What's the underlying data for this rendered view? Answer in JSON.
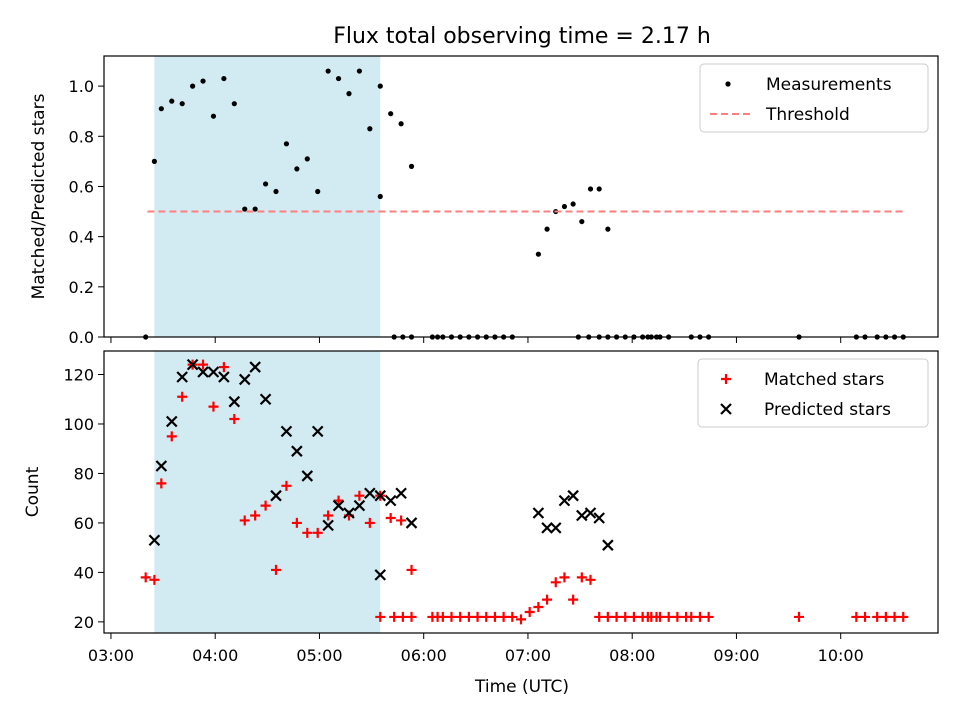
{
  "chart_data": {
    "title": "Flux total observing time = 2.17 h",
    "xlabel": "Time (UTC)",
    "x_ticks": [
      "03:00",
      "04:00",
      "05:00",
      "06:00",
      "07:00",
      "08:00",
      "09:00",
      "10:00"
    ],
    "xlim": [
      "02:56",
      "10:56"
    ],
    "highlight_span": {
      "x_start": "03:25",
      "x_end": "05:35",
      "color": "#add8e6"
    },
    "panels": [
      {
        "type": "scatter",
        "ylabel": "Matched/Predicted stars",
        "ylim": [
          0,
          1.12
        ],
        "y_ticks": [
          0.0,
          0.2,
          0.4,
          0.6,
          0.8,
          1.0
        ],
        "legend_position": "top-right",
        "series": [
          {
            "name": "Measurements",
            "marker": "dot",
            "color": "#000000",
            "points": [
              [
                "03:20",
                0
              ],
              [
                "03:25",
                0.7
              ],
              [
                "03:29",
                0.91
              ],
              [
                "03:35",
                0.94
              ],
              [
                "03:41",
                0.93
              ],
              [
                "03:47",
                1.0
              ],
              [
                "03:53",
                1.02
              ],
              [
                "03:59",
                0.88
              ],
              [
                "04:05",
                1.03
              ],
              [
                "04:11",
                0.93
              ],
              [
                "04:17",
                0.51
              ],
              [
                "04:23",
                0.51
              ],
              [
                "04:29",
                0.61
              ],
              [
                "04:35",
                0.58
              ],
              [
                "04:41",
                0.77
              ],
              [
                "04:47",
                0.67
              ],
              [
                "04:53",
                0.71
              ],
              [
                "04:59",
                0.58
              ],
              [
                "05:05",
                1.06
              ],
              [
                "05:11",
                1.03
              ],
              [
                "05:17",
                0.97
              ],
              [
                "05:23",
                1.06
              ],
              [
                "05:29",
                0.83
              ],
              [
                "05:35",
                1.0
              ],
              [
                "05:41",
                0.89
              ],
              [
                "05:47",
                0.85
              ],
              [
                "05:53",
                0.68
              ],
              [
                "05:35",
                0.56
              ],
              [
                "05:43",
                0
              ],
              [
                "05:48",
                0
              ],
              [
                "05:53",
                0
              ],
              [
                "06:05",
                0
              ],
              [
                "06:08",
                0
              ],
              [
                "06:11",
                0
              ],
              [
                "06:16",
                0
              ],
              [
                "06:21",
                0
              ],
              [
                "06:26",
                0
              ],
              [
                "06:31",
                0
              ],
              [
                "06:36",
                0
              ],
              [
                "06:41",
                0
              ],
              [
                "06:46",
                0
              ],
              [
                "06:51",
                0
              ],
              [
                "07:06",
                0.33
              ],
              [
                "07:11",
                0.43
              ],
              [
                "07:16",
                0.5
              ],
              [
                "07:21",
                0.52
              ],
              [
                "07:26",
                0.53
              ],
              [
                "07:31",
                0.46
              ],
              [
                "07:36",
                0.59
              ],
              [
                "07:41",
                0.59
              ],
              [
                "07:46",
                0.43
              ],
              [
                "07:29",
                0
              ],
              [
                "07:35",
                0
              ],
              [
                "07:41",
                0
              ],
              [
                "07:46",
                0
              ],
              [
                "07:51",
                0
              ],
              [
                "07:56",
                0
              ],
              [
                "08:01",
                0
              ],
              [
                "08:06",
                0
              ],
              [
                "08:11",
                0
              ],
              [
                "08:16",
                0
              ],
              [
                "08:21",
                0
              ],
              [
                "08:09",
                0
              ],
              [
                "08:14",
                0
              ],
              [
                "08:34",
                0
              ],
              [
                "08:39",
                0
              ],
              [
                "08:44",
                0
              ],
              [
                "09:36",
                0
              ],
              [
                "10:09",
                0
              ],
              [
                "10:14",
                0
              ],
              [
                "10:21",
                0
              ],
              [
                "10:26",
                0
              ],
              [
                "10:31",
                0
              ],
              [
                "10:36",
                0
              ]
            ]
          },
          {
            "name": "Threshold",
            "marker": "dashed-line",
            "color": "#ff7f7f",
            "points": [
              [
                "03:21",
                0.5
              ],
              [
                "10:36",
                0.5
              ]
            ]
          }
        ]
      },
      {
        "type": "scatter",
        "ylabel": "Count",
        "ylim": [
          15.5,
          129.5
        ],
        "y_ticks": [
          20,
          40,
          60,
          80,
          100,
          120
        ],
        "legend_position": "top-right",
        "series": [
          {
            "name": "Matched stars",
            "marker": "plus",
            "color": "#ff0000",
            "points": [
              [
                "03:20",
                38
              ],
              [
                "03:25",
                37
              ],
              [
                "03:29",
                76
              ],
              [
                "03:35",
                95
              ],
              [
                "03:41",
                111
              ],
              [
                "03:47",
                124
              ],
              [
                "03:53",
                124
              ],
              [
                "03:59",
                107
              ],
              [
                "04:05",
                123
              ],
              [
                "04:11",
                102
              ],
              [
                "04:17",
                61
              ],
              [
                "04:23",
                63
              ],
              [
                "04:29",
                67
              ],
              [
                "04:35",
                41
              ],
              [
                "04:41",
                75
              ],
              [
                "04:47",
                60
              ],
              [
                "04:53",
                56
              ],
              [
                "04:59",
                56
              ],
              [
                "05:05",
                63
              ],
              [
                "05:11",
                69
              ],
              [
                "05:17",
                63
              ],
              [
                "05:23",
                71
              ],
              [
                "05:29",
                60
              ],
              [
                "05:35",
                71
              ],
              [
                "05:41",
                62
              ],
              [
                "05:47",
                61
              ],
              [
                "05:53",
                41
              ],
              [
                "05:35",
                22
              ],
              [
                "05:43",
                22
              ],
              [
                "05:48",
                22
              ],
              [
                "05:53",
                22
              ],
              [
                "06:05",
                22
              ],
              [
                "06:08",
                22
              ],
              [
                "06:11",
                22
              ],
              [
                "06:16",
                22
              ],
              [
                "06:21",
                22
              ],
              [
                "06:26",
                22
              ],
              [
                "06:31",
                22
              ],
              [
                "06:36",
                22
              ],
              [
                "06:41",
                22
              ],
              [
                "06:46",
                22
              ],
              [
                "06:51",
                22
              ],
              [
                "06:56",
                21
              ],
              [
                "07:01",
                24
              ],
              [
                "07:06",
                26
              ],
              [
                "07:11",
                29
              ],
              [
                "07:16",
                36
              ],
              [
                "07:21",
                38
              ],
              [
                "07:26",
                29
              ],
              [
                "07:31",
                38
              ],
              [
                "07:36",
                37
              ],
              [
                "07:41",
                22
              ],
              [
                "07:46",
                22
              ],
              [
                "07:51",
                22
              ],
              [
                "07:56",
                22
              ],
              [
                "08:01",
                22
              ],
              [
                "08:06",
                22
              ],
              [
                "08:11",
                22
              ],
              [
                "08:16",
                22
              ],
              [
                "08:21",
                22
              ],
              [
                "08:26",
                22
              ],
              [
                "08:31",
                22
              ],
              [
                "08:09",
                22
              ],
              [
                "08:14",
                22
              ],
              [
                "08:34",
                22
              ],
              [
                "08:39",
                22
              ],
              [
                "08:44",
                22
              ],
              [
                "09:36",
                22
              ],
              [
                "10:09",
                22
              ],
              [
                "10:14",
                22
              ],
              [
                "10:21",
                22
              ],
              [
                "10:26",
                22
              ],
              [
                "10:31",
                22
              ],
              [
                "10:36",
                22
              ]
            ]
          },
          {
            "name": "Predicted stars",
            "marker": "x",
            "color": "#000000",
            "points": [
              [
                "03:25",
                53
              ],
              [
                "03:29",
                83
              ],
              [
                "03:35",
                101
              ],
              [
                "03:41",
                119
              ],
              [
                "03:47",
                124
              ],
              [
                "03:53",
                121
              ],
              [
                "03:59",
                121
              ],
              [
                "04:05",
                119
              ],
              [
                "04:11",
                109
              ],
              [
                "04:17",
                118
              ],
              [
                "04:23",
                123
              ],
              [
                "04:29",
                110
              ],
              [
                "04:35",
                71
              ],
              [
                "04:41",
                97
              ],
              [
                "04:47",
                89
              ],
              [
                "04:53",
                79
              ],
              [
                "04:59",
                97
              ],
              [
                "05:05",
                59
              ],
              [
                "05:11",
                67
              ],
              [
                "05:17",
                64
              ],
              [
                "05:23",
                67
              ],
              [
                "05:29",
                72
              ],
              [
                "05:35",
                71
              ],
              [
                "05:41",
                69
              ],
              [
                "05:47",
                72
              ],
              [
                "05:53",
                60
              ],
              [
                "05:35",
                39
              ],
              [
                "07:06",
                64
              ],
              [
                "07:11",
                58
              ],
              [
                "07:16",
                58
              ],
              [
                "07:21",
                69
              ],
              [
                "07:26",
                71
              ],
              [
                "07:31",
                63
              ],
              [
                "07:36",
                64
              ],
              [
                "07:41",
                62
              ],
              [
                "07:46",
                51
              ]
            ]
          }
        ]
      }
    ]
  }
}
